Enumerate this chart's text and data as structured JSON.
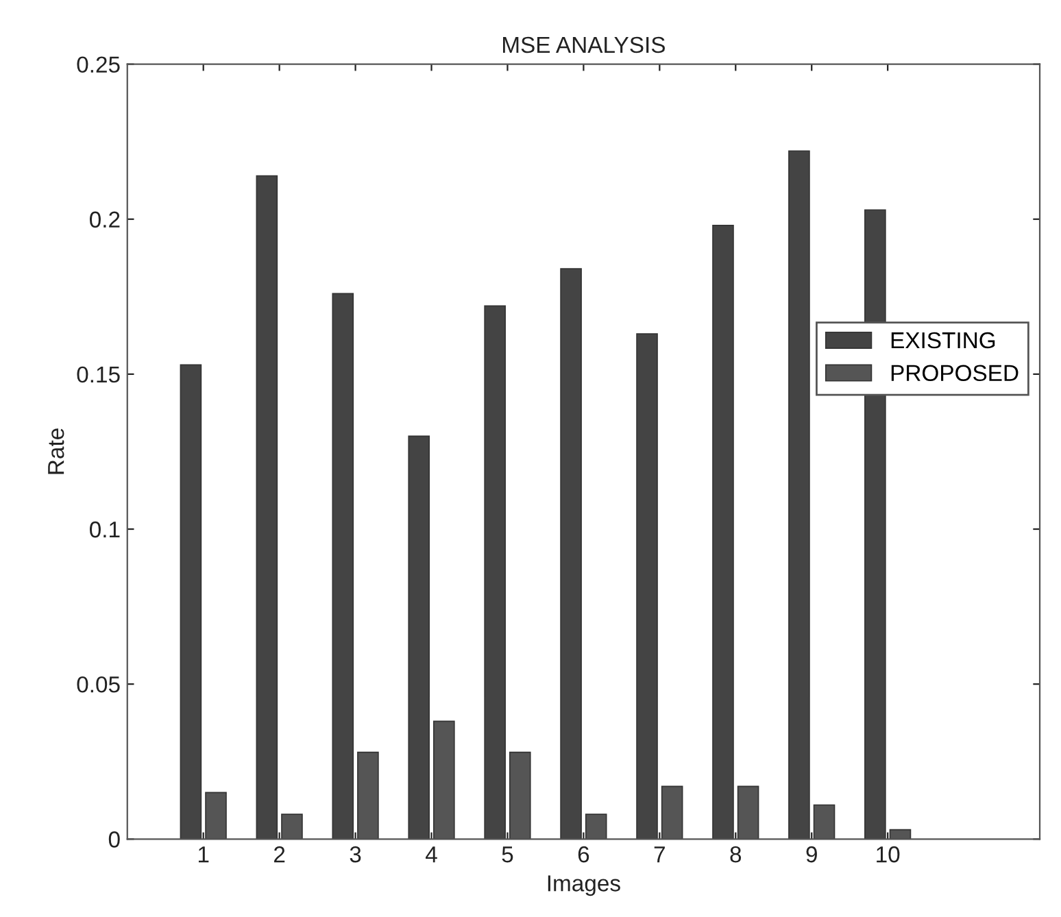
{
  "chart_data": {
    "type": "bar",
    "title": "MSE ANALYSIS",
    "xlabel": "Images",
    "ylabel": "Rate",
    "x": [
      1,
      2,
      3,
      4,
      5,
      6,
      7,
      8,
      9,
      10
    ],
    "series": [
      {
        "name": "EXISTING",
        "color": "#444444",
        "values": [
          0.153,
          0.214,
          0.176,
          0.13,
          0.172,
          0.184,
          0.163,
          0.198,
          0.222,
          0.203
        ]
      },
      {
        "name": "PROPOSED",
        "color": "#555555",
        "values": [
          0.015,
          0.008,
          0.028,
          0.038,
          0.028,
          0.008,
          0.017,
          0.017,
          0.011,
          0.003
        ]
      }
    ],
    "xlim": [
      0,
      12
    ],
    "xticks": [
      1,
      2,
      3,
      4,
      5,
      6,
      7,
      8,
      9,
      10
    ],
    "ylim": [
      0,
      0.25
    ],
    "yticks": [
      0,
      0.05,
      0.1,
      0.15,
      0.2,
      0.25
    ],
    "grid": false,
    "legend": "right"
  }
}
